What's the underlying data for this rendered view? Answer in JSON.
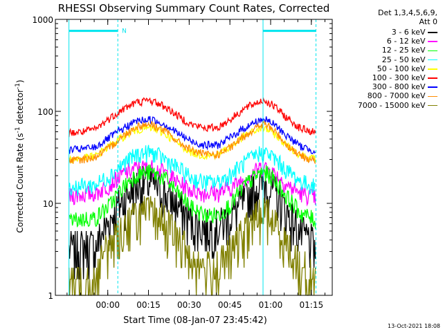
{
  "title": "RHESSI Observing Summary Count Rates, Corrected",
  "header_right": {
    "line1": "Det 1,3,4,5,6,9,",
    "line2": "Att 0"
  },
  "footer_date": "13-Oct-2021 18:08",
  "colors": {
    "axis": "#000000",
    "attenuator_marker": "#00e5ee"
  },
  "chart_data": {
    "type": "line",
    "title": "RHESSI Observing Summary Count Rates, Corrected",
    "xlabel": "Start Time (08-Jan-07 23:45:42)",
    "ylabel": "Corrected Count Rate (s⁻¹ detector⁻¹)",
    "yscale": "log",
    "ylim": [
      1,
      1000
    ],
    "xlim_minutes_from_start": [
      -5,
      97
    ],
    "x_tick_labels": [
      "00:00",
      "00:15",
      "00:30",
      "00:45",
      "01:00",
      "01:15"
    ],
    "x_tick_minutes_from_start": [
      14.3,
      29.3,
      44.3,
      59.3,
      74.3,
      89.3
    ],
    "y_tick_labels": [
      "1",
      "10",
      "100",
      "1000"
    ],
    "y_tick_values": [
      1,
      10,
      100,
      1000
    ],
    "annotations": [
      {
        "text": "N",
        "x_minute": 19.5,
        "y_value": 780
      }
    ],
    "marker_lines": [
      {
        "x_minute": 0,
        "style": "solid"
      },
      {
        "x_minute": 18,
        "style": "dashed"
      },
      {
        "x_minute": 71.5,
        "style": "solid"
      },
      {
        "x_minute": 91,
        "style": "dashed"
      }
    ],
    "bar_segments": [
      {
        "x_start": 0,
        "x_end": 18,
        "y_value": 750
      },
      {
        "x_start": 71.5,
        "x_end": 91,
        "y_value": 750
      }
    ],
    "x_minutes": [
      0,
      5,
      10,
      15,
      20,
      25,
      30,
      35,
      40,
      45,
      50,
      55,
      60,
      65,
      70,
      72,
      75,
      80,
      85,
      91
    ],
    "series": [
      {
        "name": "3 - 6 keV",
        "color": "#000000",
        "values": [
          3.2,
          3.3,
          3.5,
          6.5,
          11,
          16,
          17,
          13,
          9.5,
          6.5,
          5.5,
          5.5,
          7.5,
          11,
          16,
          17,
          14,
          8,
          5,
          3.2
        ]
      },
      {
        "name": "6 - 12 keV",
        "color": "#ff00ff",
        "values": [
          12,
          12.5,
          13,
          16,
          21,
          24.5,
          25,
          22,
          17,
          14,
          13,
          13,
          15,
          19,
          24,
          25,
          22,
          16,
          13,
          11.5
        ]
      },
      {
        "name": "12 - 25 keV",
        "color": "#00ff00",
        "values": [
          6.5,
          6.8,
          7,
          9.5,
          15,
          21,
          22,
          19,
          13,
          9,
          7.5,
          7.5,
          10,
          16,
          21,
          22,
          19,
          12,
          8,
          6.5
        ]
      },
      {
        "name": "25 - 50 keV",
        "color": "#00ffff",
        "values": [
          15,
          15.5,
          16,
          20,
          27,
          34,
          36,
          31,
          24,
          19,
          17,
          17,
          21,
          28,
          35,
          36,
          32,
          23,
          17.5,
          15
        ]
      },
      {
        "name": "50 - 100 keV",
        "color": "#ffff00",
        "values": [
          30,
          31,
          33,
          42,
          53,
          63,
          66,
          58,
          45,
          36,
          33,
          34,
          42,
          55,
          64,
          66,
          59,
          43,
          34,
          30
        ]
      },
      {
        "name": "100 - 300 keV",
        "color": "#ff0000",
        "values": [
          58,
          60,
          64,
          84,
          106,
          126,
          132,
          114,
          90,
          72,
          66,
          67,
          84,
          108,
          128,
          132,
          117,
          86,
          66,
          58
        ]
      },
      {
        "name": "300 - 800 keV",
        "color": "#0000ff",
        "values": [
          38,
          39,
          41,
          52,
          65,
          79,
          82,
          73,
          58,
          47,
          43,
          43,
          53,
          67,
          80,
          82,
          74,
          55,
          42,
          37
        ]
      },
      {
        "name": "800 - 7000 keV",
        "color": "#ff8c00",
        "values": [
          29,
          30,
          32,
          40,
          54,
          69,
          73,
          62,
          47,
          38,
          34,
          34,
          41,
          55,
          69,
          73,
          64,
          44,
          33,
          29
        ]
      },
      {
        "name": "7000 - 15000 keV",
        "color": "#808000",
        "values": [
          1.4,
          1.5,
          1.6,
          3.5,
          5.5,
          7.5,
          8,
          6.5,
          4,
          2.5,
          2,
          2,
          3,
          5,
          7.5,
          8,
          6.5,
          3.5,
          2,
          1.4
        ]
      }
    ]
  }
}
